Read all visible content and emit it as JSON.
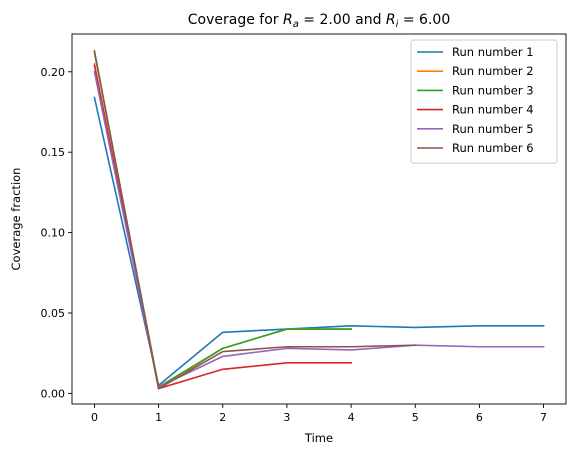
{
  "chart_data": {
    "type": "line",
    "title": {
      "prefix": "Coverage for ",
      "sym_a": "R",
      "sub_a": "a",
      "mid": " = 2.00 and ",
      "sym_i": "R",
      "sub_i": "i",
      "suffix": " = 6.00"
    },
    "xlabel": "Time",
    "ylabel": "Coverage fraction",
    "xlim": [
      -0.35,
      7.35
    ],
    "ylim": [
      -0.0066,
      0.2235
    ],
    "xticks": [
      0,
      1,
      2,
      3,
      4,
      5,
      6,
      7
    ],
    "yticks": [
      0.0,
      0.05,
      0.1,
      0.15,
      0.2
    ],
    "ytick_labels": [
      "0.00",
      "0.05",
      "0.10",
      "0.15",
      "0.20"
    ],
    "grid": false,
    "legend_position": "top-right",
    "series": [
      {
        "name": "Run number 1",
        "color": "#1f77b4",
        "x": [
          0,
          1,
          2,
          3,
          4,
          5,
          6,
          7
        ],
        "y": [
          0.184,
          0.005,
          0.038,
          0.04,
          0.042,
          0.041,
          0.042,
          0.042
        ]
      },
      {
        "name": "Run number 2",
        "color": "#ff7f0e",
        "x": [
          0,
          1,
          2,
          3,
          4
        ],
        "y": [
          0.205,
          0.003,
          0.028,
          0.04,
          0.04
        ]
      },
      {
        "name": "Run number 3",
        "color": "#2ca02c",
        "x": [
          0,
          1,
          2,
          3,
          4
        ],
        "y": [
          0.212,
          0.004,
          0.028,
          0.04,
          0.04
        ]
      },
      {
        "name": "Run number 4",
        "color": "#d62728",
        "x": [
          0,
          1,
          2,
          3,
          4
        ],
        "y": [
          0.204,
          0.003,
          0.015,
          0.019,
          0.019
        ]
      },
      {
        "name": "Run number 5",
        "color": "#9467bd",
        "x": [
          0,
          1,
          2,
          3,
          4,
          5,
          6,
          7
        ],
        "y": [
          0.2,
          0.004,
          0.023,
          0.028,
          0.027,
          0.03,
          0.029,
          0.029
        ]
      },
      {
        "name": "Run number 6",
        "color": "#8c564b",
        "x": [
          0,
          1,
          2,
          3,
          4,
          5
        ],
        "y": [
          0.213,
          0.003,
          0.026,
          0.029,
          0.029,
          0.03
        ]
      }
    ]
  }
}
